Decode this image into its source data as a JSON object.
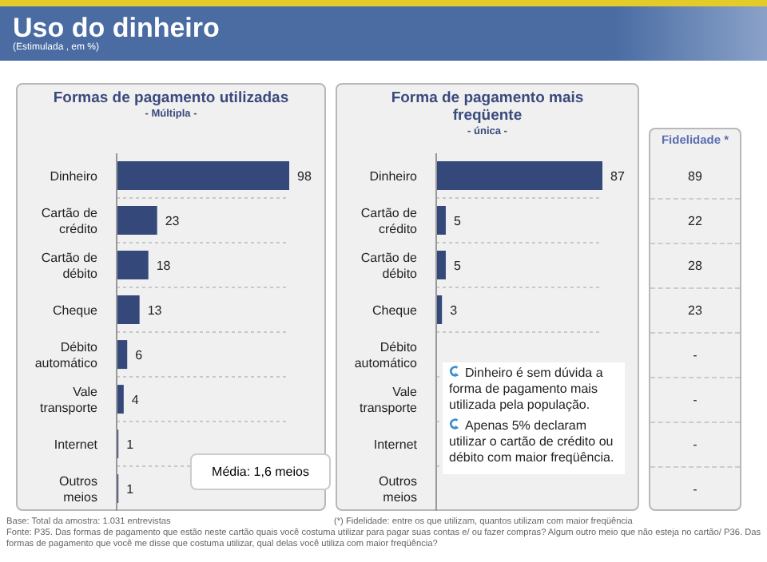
{
  "chart_data": [
    {
      "type": "other",
      "title": "Uso do dinheiro",
      "subtitle": "(Estimulada , em %)",
      "annotations": [
        "Base: Total da amostra: 1.031 entrevistas",
        "(*) Fidelidade: entre os que utilizam, quantos utilizam com maior freqüência",
        "Fonte: P35. Das formas de pagamento que estão neste cartão quais você costuma utilizar para pagar suas contas e/ ou fazer compras? Algum outro meio que não esteja no cartão/ P36. Das formas de pagamento que você me disse que costuma utilizar, qual delas você utiliza com maior freqüência?"
      ]
    },
    {
      "type": "bar",
      "orientation": "horizontal",
      "title": "Formas de pagamento utilizadas",
      "subtitle": "- Múltipla -",
      "categories": [
        "Dinheiro",
        "Cartão de crédito",
        "Cartão de débito",
        "Cheque",
        "Débito automático",
        "Vale transporte",
        "Internet",
        "Outros meios"
      ],
      "values": [
        98,
        23,
        18,
        13,
        6,
        4,
        1,
        1
      ],
      "color": "#34487a",
      "data_labels": true,
      "grid": "y",
      "annotations": [
        "Média: 1,6 meios"
      ]
    },
    {
      "type": "bar",
      "orientation": "horizontal",
      "title": "Forma de pagamento mais freqüente",
      "subtitle": "- única -",
      "categories": [
        "Dinheiro",
        "Cartão de crédito",
        "Cartão de débito",
        "Cheque",
        "Débito automático",
        "Vale transporte",
        "Internet",
        "Outros meios"
      ],
      "values": [
        87,
        5,
        5,
        3,
        null,
        null,
        null,
        null
      ],
      "color": "#34487a",
      "data_labels": true,
      "grid": "y",
      "annotations": [
        "Dinheiro é sem dúvida a forma de pagamento mais utilizada pela população.",
        "Apenas 5% declaram utilizar o cartão de crédito ou débito com maior freqüência."
      ]
    },
    {
      "type": "other",
      "title": "Fidelidade *",
      "values": [
        89,
        22,
        28,
        23,
        null,
        null,
        null,
        null
      ],
      "value_labels": [
        "89",
        "22",
        "28",
        "23",
        "-",
        "-",
        "-",
        "-"
      ]
    }
  ]
}
